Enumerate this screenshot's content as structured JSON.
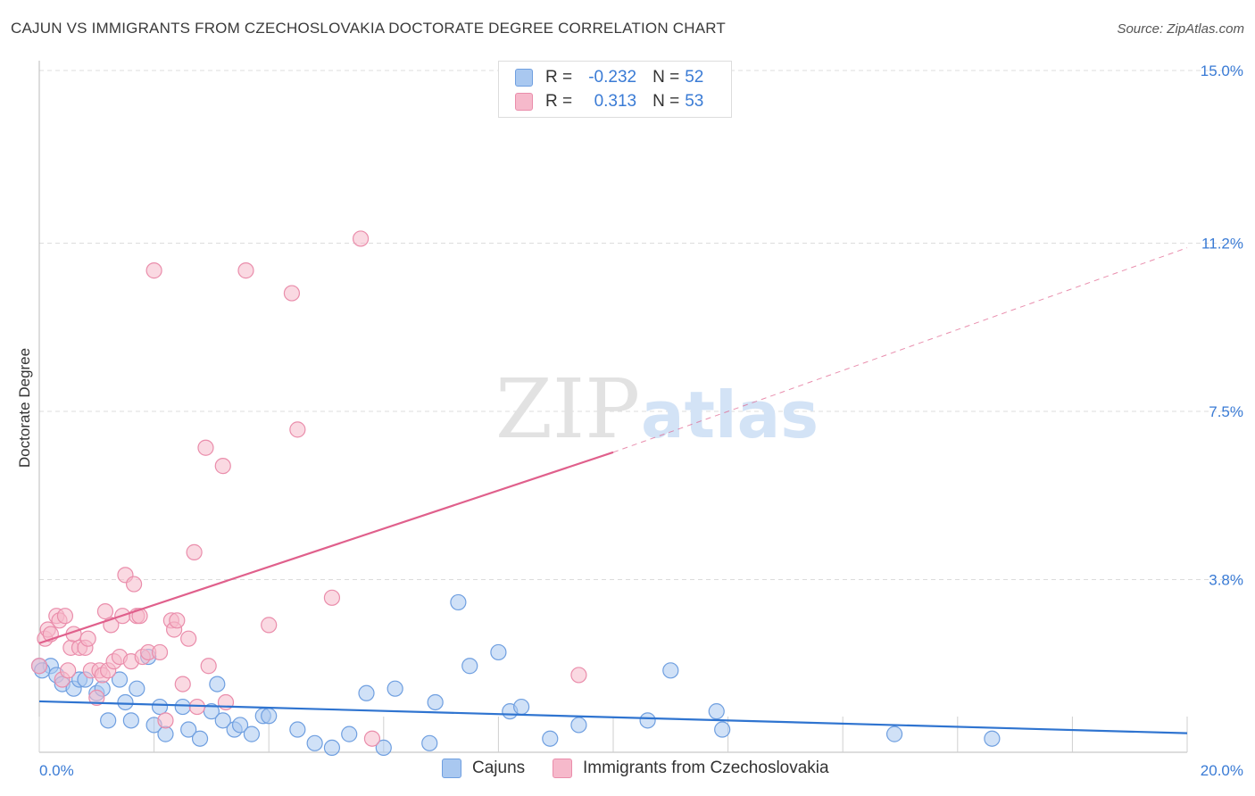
{
  "title": "CAJUN VS IMMIGRANTS FROM CZECHOSLOVAKIA DOCTORATE DEGREE CORRELATION CHART",
  "source": "Source: ZipAtlas.com",
  "watermark": {
    "zip": "ZIP",
    "atlas": "atlas"
  },
  "legend_top": {
    "rows": [
      {
        "r_label": "R =",
        "r_value": "-0.232",
        "n_label": "N =",
        "n_value": "52",
        "color": "#a9c8f0",
        "border": "#6f9fe0"
      },
      {
        "r_label": "R =",
        "r_value": "0.313",
        "n_label": "N =",
        "n_value": "53",
        "color": "#f6b9cb",
        "border": "#ea8dab"
      }
    ]
  },
  "legend_bottom": [
    {
      "label": "Cajuns",
      "color": "#a9c8f0",
      "border": "#6f9fe0"
    },
    {
      "label": "Immigrants from Czechoslovakia",
      "color": "#f6b9cb",
      "border": "#ea8dab"
    }
  ],
  "chart_data": {
    "type": "scatter",
    "title": "CAJUN VS IMMIGRANTS FROM CZECHOSLOVAKIA DOCTORATE DEGREE CORRELATION CHART",
    "xlabel": "",
    "ylabel": "Doctorate Degree",
    "xlim": [
      0,
      20
    ],
    "ylim": [
      0,
      15
    ],
    "x_tick_labels": [
      "0.0%",
      "20.0%"
    ],
    "y_ticks": [
      3.8,
      7.5,
      11.2,
      15.0
    ],
    "y_tick_labels": [
      "3.8%",
      "7.5%",
      "11.2%",
      "15.0%"
    ],
    "grid": true,
    "series": [
      {
        "name": "Cajuns",
        "color": "#6f9fe0",
        "fill": "#a9c8f0",
        "line_color": "#2f74d0",
        "trend": {
          "x0": 0,
          "y0": 1.12,
          "x1": 20,
          "y1": 0.42
        },
        "points": [
          [
            0.0,
            1.9
          ],
          [
            0.2,
            1.9
          ],
          [
            0.3,
            1.7
          ],
          [
            0.4,
            1.5
          ],
          [
            0.6,
            1.4
          ],
          [
            0.7,
            1.6
          ],
          [
            0.8,
            1.6
          ],
          [
            1.0,
            1.3
          ],
          [
            1.1,
            1.4
          ],
          [
            1.2,
            0.7
          ],
          [
            1.4,
            1.6
          ],
          [
            1.5,
            1.1
          ],
          [
            1.6,
            0.7
          ],
          [
            1.7,
            1.4
          ],
          [
            1.9,
            2.1
          ],
          [
            2.0,
            0.6
          ],
          [
            2.1,
            1.0
          ],
          [
            2.2,
            0.4
          ],
          [
            2.5,
            1.0
          ],
          [
            2.6,
            0.5
          ],
          [
            2.8,
            0.3
          ],
          [
            3.0,
            0.9
          ],
          [
            3.1,
            1.5
          ],
          [
            3.2,
            0.7
          ],
          [
            3.4,
            0.5
          ],
          [
            3.5,
            0.6
          ],
          [
            3.7,
            0.4
          ],
          [
            3.9,
            0.8
          ],
          [
            4.0,
            0.8
          ],
          [
            4.5,
            0.5
          ],
          [
            4.8,
            0.2
          ],
          [
            5.1,
            0.1
          ],
          [
            5.4,
            0.4
          ],
          [
            5.7,
            1.3
          ],
          [
            6.0,
            0.1
          ],
          [
            6.2,
            1.4
          ],
          [
            6.8,
            0.2
          ],
          [
            6.9,
            1.1
          ],
          [
            7.3,
            3.3
          ],
          [
            7.5,
            1.9
          ],
          [
            8.0,
            2.2
          ],
          [
            8.2,
            0.9
          ],
          [
            8.4,
            1.0
          ],
          [
            8.9,
            0.3
          ],
          [
            9.4,
            0.6
          ],
          [
            10.6,
            0.7
          ],
          [
            11.0,
            1.8
          ],
          [
            11.8,
            0.9
          ],
          [
            11.9,
            0.5
          ],
          [
            14.9,
            0.4
          ],
          [
            16.6,
            0.3
          ],
          [
            0.05,
            1.8
          ]
        ]
      },
      {
        "name": "Immigrants from Czechoslovakia",
        "color": "#ea8dab",
        "fill": "#f6b9cb",
        "line_color": "#e0608c",
        "trend": {
          "x0": 0,
          "y0": 2.4,
          "x1": 10,
          "y1": 6.6
        },
        "trend_dashed": {
          "x0": 10,
          "y0": 6.6,
          "x1": 20,
          "y1": 11.1
        },
        "points": [
          [
            0.0,
            1.9
          ],
          [
            0.1,
            2.5
          ],
          [
            0.15,
            2.7
          ],
          [
            0.2,
            2.6
          ],
          [
            0.3,
            3.0
          ],
          [
            0.35,
            2.9
          ],
          [
            0.4,
            1.6
          ],
          [
            0.5,
            1.8
          ],
          [
            0.55,
            2.3
          ],
          [
            0.6,
            2.6
          ],
          [
            0.7,
            2.3
          ],
          [
            0.8,
            2.3
          ],
          [
            0.85,
            2.5
          ],
          [
            0.9,
            1.8
          ],
          [
            1.0,
            1.2
          ],
          [
            1.05,
            1.8
          ],
          [
            1.1,
            1.7
          ],
          [
            1.15,
            3.1
          ],
          [
            1.2,
            1.8
          ],
          [
            1.25,
            2.8
          ],
          [
            1.3,
            2.0
          ],
          [
            1.4,
            2.1
          ],
          [
            1.45,
            3.0
          ],
          [
            1.5,
            3.9
          ],
          [
            1.6,
            2.0
          ],
          [
            1.65,
            3.7
          ],
          [
            1.7,
            3.0
          ],
          [
            1.75,
            3.0
          ],
          [
            1.8,
            2.1
          ],
          [
            1.9,
            2.2
          ],
          [
            2.0,
            10.6
          ],
          [
            2.1,
            2.2
          ],
          [
            2.2,
            0.7
          ],
          [
            2.3,
            2.9
          ],
          [
            2.35,
            2.7
          ],
          [
            2.4,
            2.9
          ],
          [
            2.5,
            1.5
          ],
          [
            2.6,
            2.5
          ],
          [
            2.7,
            4.4
          ],
          [
            2.75,
            1.0
          ],
          [
            2.9,
            6.7
          ],
          [
            2.95,
            1.9
          ],
          [
            3.2,
            6.3
          ],
          [
            3.25,
            1.1
          ],
          [
            3.6,
            10.6
          ],
          [
            4.0,
            2.8
          ],
          [
            4.4,
            10.1
          ],
          [
            4.5,
            7.1
          ],
          [
            5.1,
            3.4
          ],
          [
            5.6,
            11.3
          ],
          [
            5.8,
            0.3
          ],
          [
            9.4,
            1.7
          ],
          [
            0.45,
            3.0
          ]
        ]
      }
    ]
  }
}
